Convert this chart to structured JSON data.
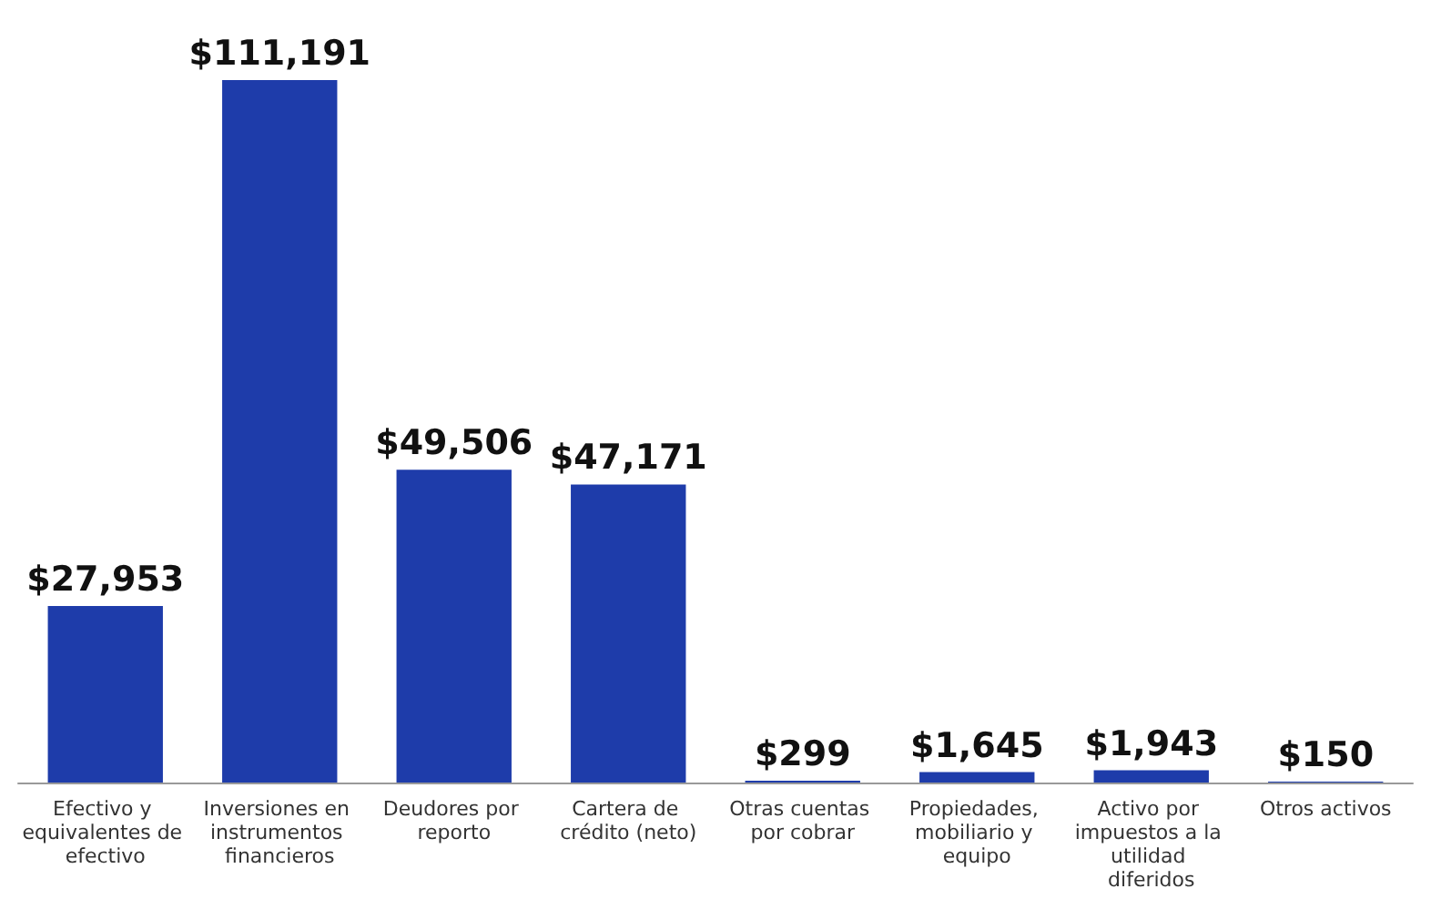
{
  "chart_data": {
    "type": "bar",
    "categories": [
      "Efectivo y equivalentes de efectivo",
      "Inversiones en instrumentos financieros",
      "Deudores por reporto",
      "Cartera de crédito (neto)",
      "Otras cuentas por cobrar",
      "Propiedades, mobiliario y equipo",
      "Activo por impuestos a la utilidad diferidos",
      "Otros activos"
    ],
    "values": [
      27953,
      111191,
      49506,
      47171,
      299,
      1645,
      1943,
      150
    ],
    "value_labels": [
      "$27,953",
      "$111,191",
      "$49,506",
      "$47,171",
      "$299",
      "$1,645",
      "$1,943",
      "$150"
    ],
    "color": "#1e3caa"
  }
}
